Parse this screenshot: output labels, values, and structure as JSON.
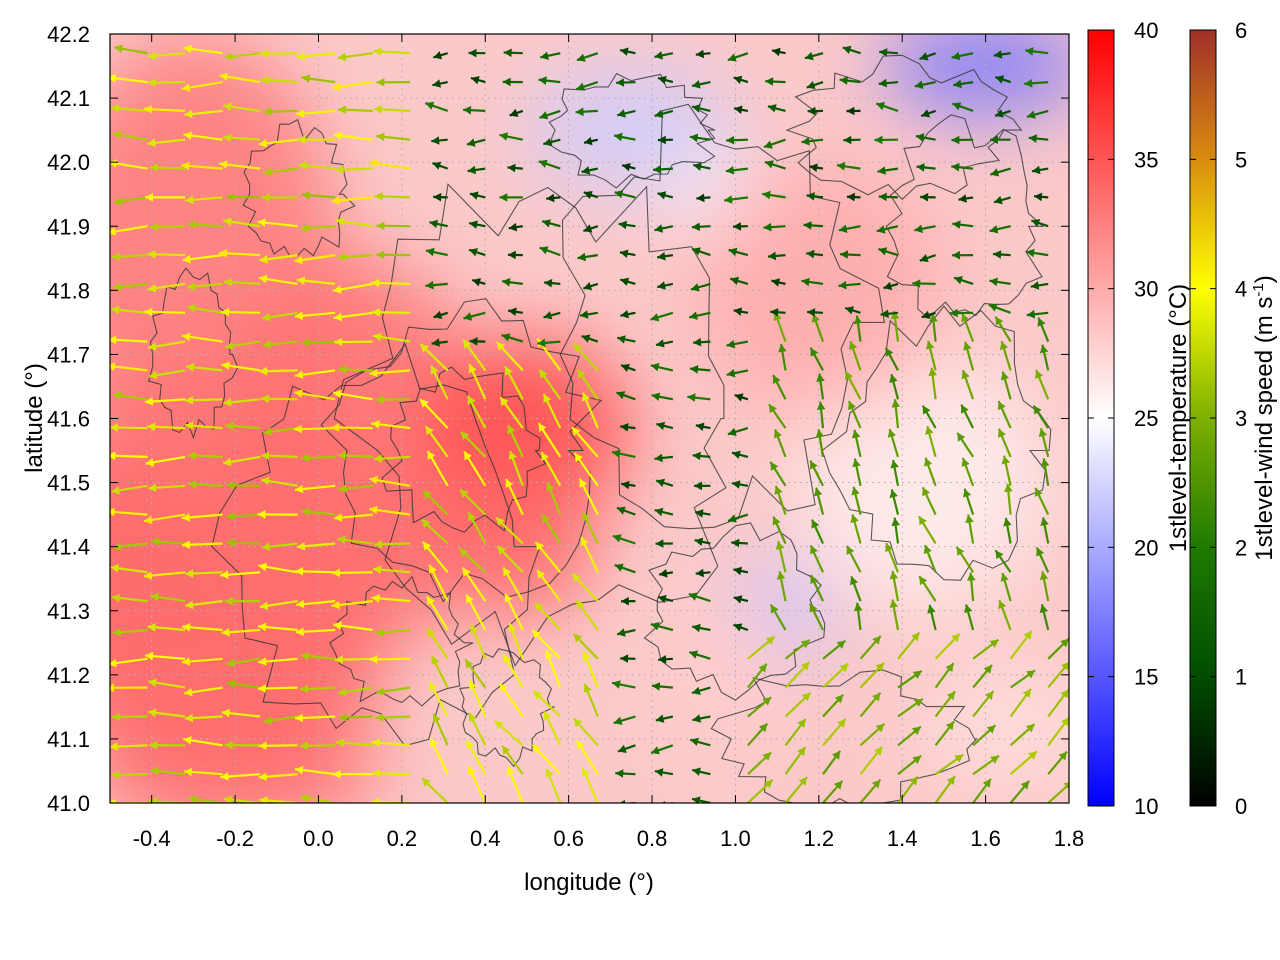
{
  "chart_data": {
    "type": "heatmap",
    "xlabel": "longitude (°)",
    "ylabel": "latitude (°)",
    "xlim": [
      -0.5,
      1.8
    ],
    "ylim": [
      41.0,
      42.2
    ],
    "x_ticks": [
      "-0.4",
      "-0.2",
      "0.0",
      "0.2",
      "0.4",
      "0.6",
      "0.8",
      "1.0",
      "1.2",
      "1.4",
      "1.6",
      "1.8"
    ],
    "x_tick_values": [
      -0.4,
      -0.2,
      0.0,
      0.2,
      0.4,
      0.6,
      0.8,
      1.0,
      1.2,
      1.4,
      1.6,
      1.8
    ],
    "y_ticks": [
      "41.0",
      "41.1",
      "41.2",
      "41.3",
      "41.4",
      "41.5",
      "41.6",
      "41.7",
      "41.8",
      "41.9",
      "42.0",
      "42.1",
      "42.2"
    ],
    "y_tick_values": [
      41.0,
      41.1,
      41.2,
      41.3,
      41.4,
      41.5,
      41.6,
      41.7,
      41.8,
      41.9,
      42.0,
      42.1,
      42.2
    ],
    "grid": true,
    "overlays": [
      "wind vectors colored by speed",
      "terrain contour lines"
    ],
    "colorbars": [
      {
        "label": "1stlevel-temperature (°C)",
        "range": [
          10,
          40
        ],
        "ticks": [
          "10",
          "15",
          "20",
          "25",
          "30",
          "35",
          "40"
        ],
        "tick_values": [
          10,
          15,
          20,
          25,
          30,
          35,
          40
        ],
        "colors": [
          "#0000ff",
          "#ffffff",
          "#ff0000"
        ]
      },
      {
        "label_main": "1stlevel-wind speed (m s",
        "label_sup": "-1",
        "label_end": ")",
        "range": [
          0,
          6
        ],
        "ticks": [
          "0",
          "1",
          "2",
          "3",
          "4",
          "5",
          "6"
        ],
        "tick_values": [
          0,
          1,
          2,
          3,
          4,
          5,
          6
        ],
        "colors": [
          "#000000",
          "#004d00",
          "#2e8b00",
          "#8dbb00",
          "#ffff00",
          "#d88c10",
          "#a0302a"
        ]
      }
    ],
    "temperature_regions": [
      {
        "region": "west, longitude -0.5 to 0.3",
        "temperature_c": 34
      },
      {
        "region": "center, around 0.5, 41.55",
        "temperature_c": 36
      },
      {
        "region": "north-east, around 0.8, 42.05",
        "temperature_c": 22
      },
      {
        "region": "top-right corner, around 1.6, 42.15",
        "temperature_c": 17
      },
      {
        "region": "east, around 1.4, 41.5",
        "temperature_c": 26
      },
      {
        "region": "around 1.1, 41.3",
        "temperature_c": 21
      },
      {
        "region": "south-east, around 1.6, 41.1",
        "temperature_c": 27
      }
    ],
    "wind_regions": [
      {
        "region": "west, longitude below 0.3",
        "direction": "westward",
        "speed_m_s": 3.5
      },
      {
        "region": "center, around 0.5, 41.45",
        "direction": "north-west",
        "speed_m_s": 3.8
      },
      {
        "region": "north and north-east",
        "direction": "westward",
        "speed_m_s": 1.5
      },
      {
        "region": "south-east",
        "direction": "north-east",
        "speed_m_s": 3.0
      }
    ]
  }
}
